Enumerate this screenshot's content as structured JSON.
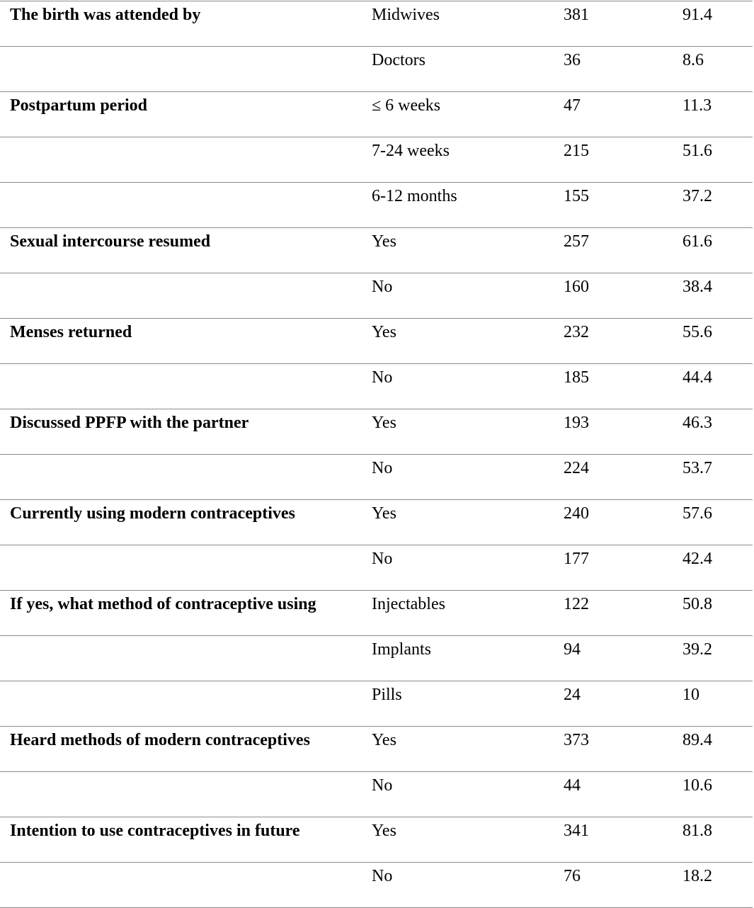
{
  "rows": [
    {
      "variable": "The birth was attended by",
      "category": "Midwives",
      "n": "381",
      "percent": "91.4"
    },
    {
      "variable": "",
      "category": "Doctors",
      "n": "36",
      "percent": "8.6"
    },
    {
      "variable": "Postpartum period",
      "category": "≤ 6 weeks",
      "n": "47",
      "percent": "11.3"
    },
    {
      "variable": "",
      "category": "7-24 weeks",
      "n": "215",
      "percent": "51.6"
    },
    {
      "variable": "",
      "category": "6-12 months",
      "n": "155",
      "percent": "37.2"
    },
    {
      "variable": "Sexual intercourse resumed",
      "category": "Yes",
      "n": "257",
      "percent": "61.6"
    },
    {
      "variable": "",
      "category": "No",
      "n": "160",
      "percent": "38.4"
    },
    {
      "variable": "Menses returned",
      "category": "Yes",
      "n": "232",
      "percent": "55.6"
    },
    {
      "variable": "",
      "category": "No",
      "n": "185",
      "percent": "44.4"
    },
    {
      "variable": "Discussed PPFP with the partner",
      "category": "Yes",
      "n": "193",
      "percent": "46.3"
    },
    {
      "variable": "",
      "category": "No",
      "n": "224",
      "percent": "53.7"
    },
    {
      "variable": "Currently using modern contraceptives",
      "category": "Yes",
      "n": "240",
      "percent": "57.6"
    },
    {
      "variable": "",
      "category": "No",
      "n": "177",
      "percent": "42.4"
    },
    {
      "variable": "If yes, what method of contraceptive using",
      "category": "Injectables",
      "n": "122",
      "percent": "50.8"
    },
    {
      "variable": "",
      "category": "Implants",
      "n": "94",
      "percent": "39.2"
    },
    {
      "variable": "",
      "category": "Pills",
      "n": "24",
      "percent": "10"
    },
    {
      "variable": "Heard methods of modern contraceptives",
      "category": "Yes",
      "n": "373",
      "percent": "89.4"
    },
    {
      "variable": "",
      "category": "No",
      "n": "44",
      "percent": "10.6"
    },
    {
      "variable": "Intention to use contraceptives in future",
      "category": "Yes",
      "n": "341",
      "percent": "81.8"
    },
    {
      "variable": "",
      "category": "No",
      "n": "76",
      "percent": "18.2"
    }
  ]
}
